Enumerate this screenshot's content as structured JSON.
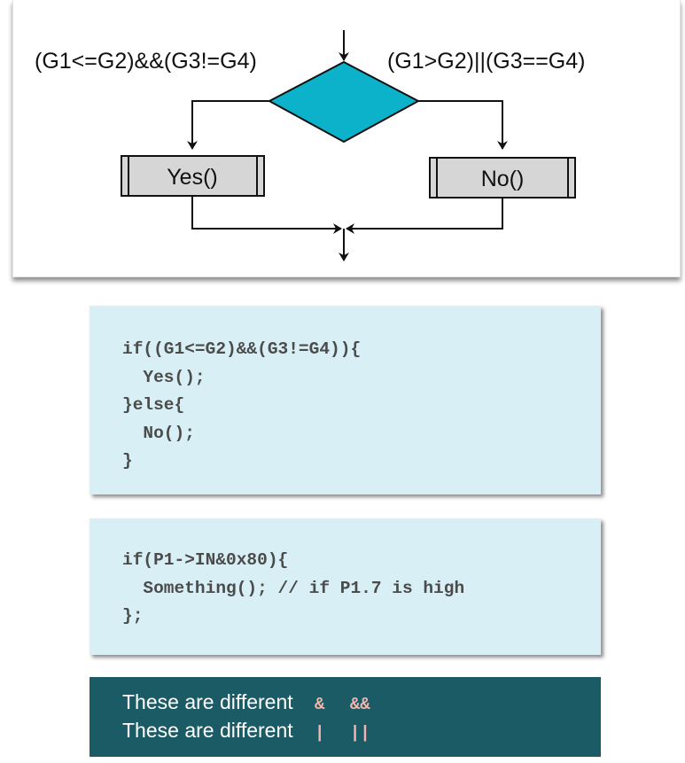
{
  "flowchart": {
    "left_condition": "(G1<=G2)&&(G3!=G4)",
    "right_condition": "(G1>G2)||(G3==G4)",
    "yes_label": "Yes()",
    "no_label": "No()",
    "colors": {
      "decision_fill": "#0bb2c9",
      "box_fill": "#d6d6d6",
      "line": "#111111"
    }
  },
  "code_block_1": {
    "lines": [
      "if((G1<=G2)&&(G3!=G4)){",
      "  Yes();",
      "}else{",
      "  No();",
      "}"
    ]
  },
  "code_block_2": {
    "lines": [
      "if(P1->IN&0x80){",
      "  Something(); // if P1.7 is high",
      "};"
    ]
  },
  "note": {
    "line1_text": "These are different",
    "line1_op_a": "&",
    "line1_op_b": "&&",
    "line2_text": "These are different",
    "line2_op_a": "|",
    "line2_op_b": "||",
    "colors": {
      "background": "#1b5b66",
      "operator": "#f2b6ae"
    }
  }
}
